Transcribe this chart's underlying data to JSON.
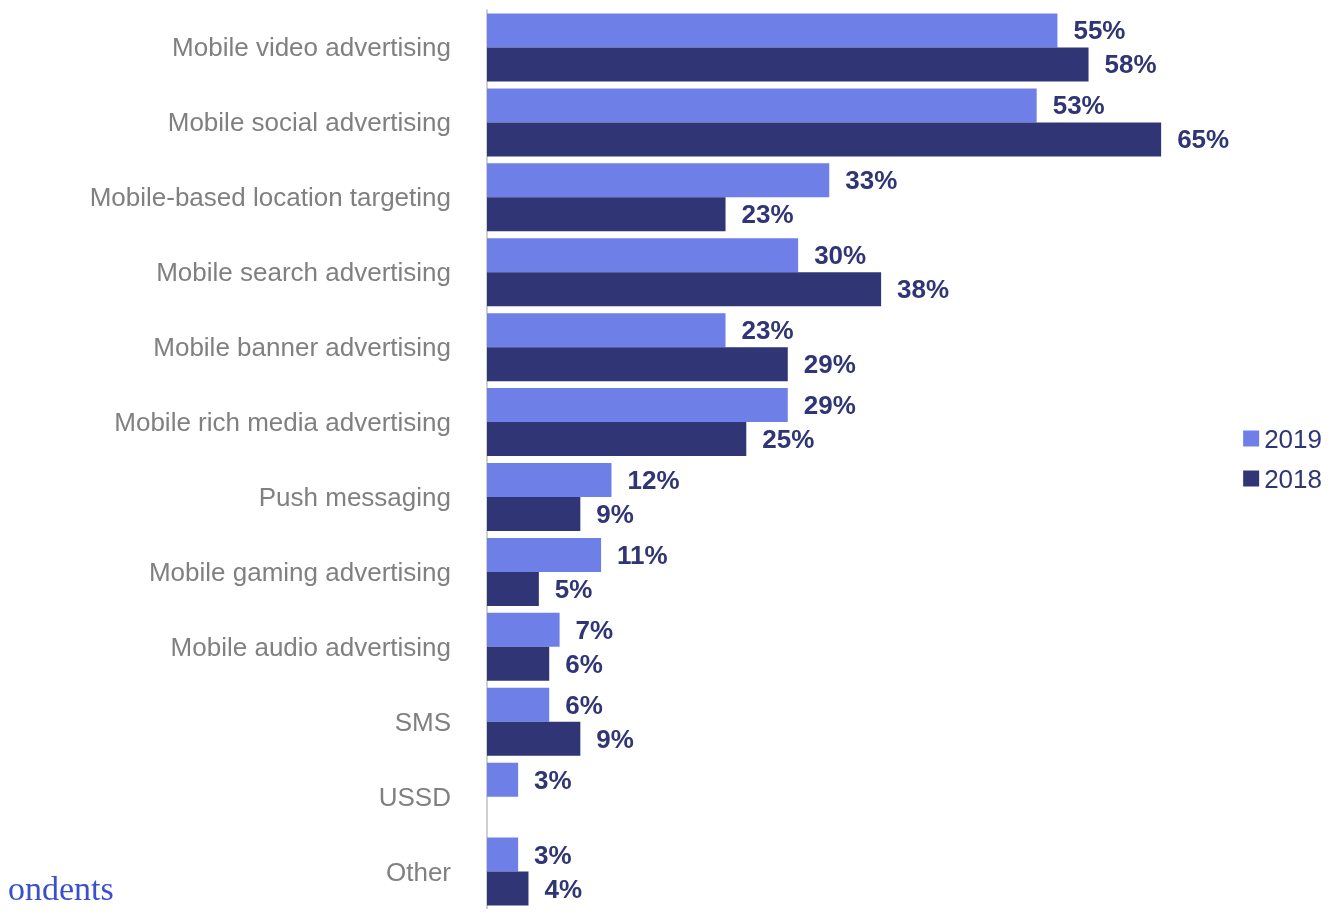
{
  "chart_data": {
    "type": "bar",
    "orientation": "horizontal",
    "categories": [
      "Mobile video advertising",
      "Mobile social advertising",
      "Mobile-based location targeting",
      "Mobile search advertising",
      "Mobile banner advertising",
      "Mobile rich media advertising",
      "Push messaging",
      "Mobile gaming advertising",
      "Mobile audio advertising",
      "SMS",
      "USSD",
      "Other"
    ],
    "series": [
      {
        "name": "2019",
        "color": "#6e7fe8",
        "values": [
          55,
          53,
          33,
          30,
          23,
          29,
          12,
          11,
          7,
          6,
          3,
          3
        ],
        "value_labels": [
          "55%",
          "53%",
          "33%",
          "30%",
          "23%",
          "29%",
          "12%",
          "11%",
          "7%",
          "6%",
          "3%",
          "3%"
        ]
      },
      {
        "name": "2018",
        "color": "#2f3575",
        "values": [
          58,
          65,
          23,
          38,
          29,
          25,
          9,
          5,
          6,
          9,
          null,
          4
        ],
        "value_labels": [
          "58%",
          "65%",
          "23%",
          "38%",
          "29%",
          "25%",
          "9%",
          "5%",
          "6%",
          "9%",
          null,
          "4%"
        ]
      }
    ],
    "legend": "right",
    "annotations": [
      "ondents"
    ]
  }
}
